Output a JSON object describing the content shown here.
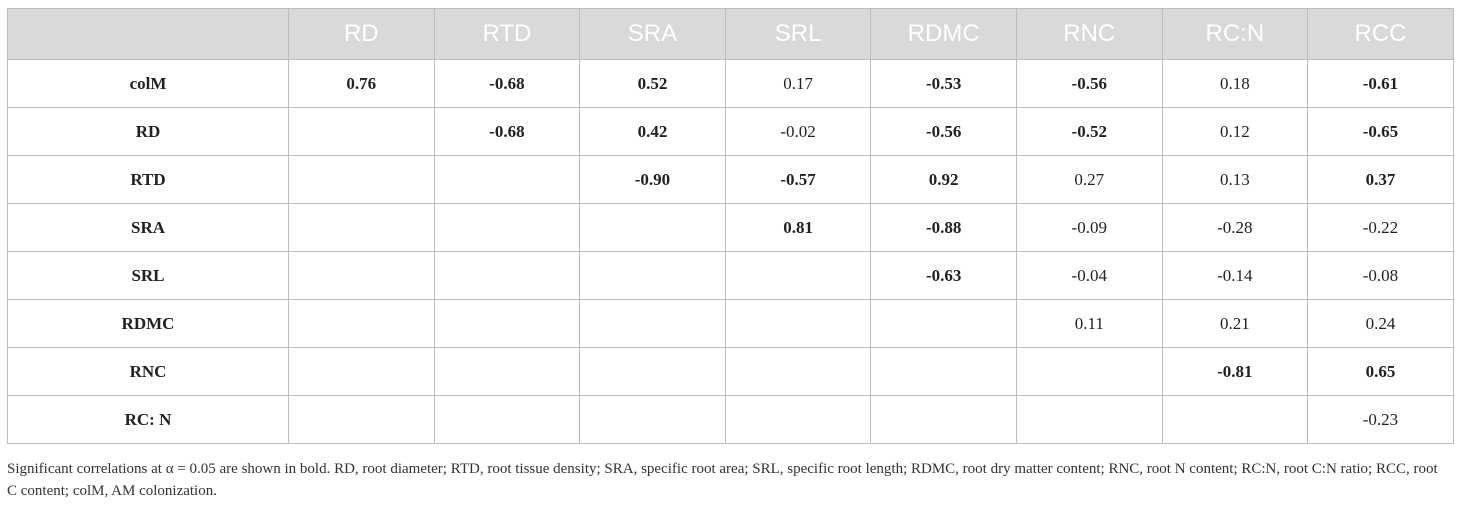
{
  "table": {
    "columns": [
      "RD",
      "RTD",
      "SRA",
      "SRL",
      "RDMC",
      "RNC",
      "RC:N",
      "RCC"
    ],
    "rows": [
      {
        "label": "colM",
        "cells": [
          {
            "v": "0.76",
            "bold": true
          },
          {
            "v": "-0.68",
            "bold": true
          },
          {
            "v": "0.52",
            "bold": true
          },
          {
            "v": "0.17",
            "bold": false
          },
          {
            "v": "-0.53",
            "bold": true
          },
          {
            "v": "-0.56",
            "bold": true
          },
          {
            "v": "0.18",
            "bold": false
          },
          {
            "v": "-0.61",
            "bold": true
          }
        ]
      },
      {
        "label": "RD",
        "cells": [
          {
            "v": "",
            "bold": false
          },
          {
            "v": "-0.68",
            "bold": true
          },
          {
            "v": "0.42",
            "bold": true
          },
          {
            "v": "-0.02",
            "bold": false
          },
          {
            "v": "-0.56",
            "bold": true
          },
          {
            "v": "-0.52",
            "bold": true
          },
          {
            "v": "0.12",
            "bold": false
          },
          {
            "v": "-0.65",
            "bold": true
          }
        ]
      },
      {
        "label": "RTD",
        "cells": [
          {
            "v": "",
            "bold": false
          },
          {
            "v": "",
            "bold": false
          },
          {
            "v": "-0.90",
            "bold": true
          },
          {
            "v": "-0.57",
            "bold": true
          },
          {
            "v": "0.92",
            "bold": true
          },
          {
            "v": "0.27",
            "bold": false
          },
          {
            "v": "0.13",
            "bold": false
          },
          {
            "v": "0.37",
            "bold": true
          }
        ]
      },
      {
        "label": "SRA",
        "cells": [
          {
            "v": "",
            "bold": false
          },
          {
            "v": "",
            "bold": false
          },
          {
            "v": "",
            "bold": false
          },
          {
            "v": "0.81",
            "bold": true
          },
          {
            "v": "-0.88",
            "bold": true
          },
          {
            "v": "-0.09",
            "bold": false
          },
          {
            "v": "-0.28",
            "bold": false
          },
          {
            "v": "-0.22",
            "bold": false
          }
        ]
      },
      {
        "label": "SRL",
        "cells": [
          {
            "v": "",
            "bold": false
          },
          {
            "v": "",
            "bold": false
          },
          {
            "v": "",
            "bold": false
          },
          {
            "v": "",
            "bold": false
          },
          {
            "v": "-0.63",
            "bold": true
          },
          {
            "v": "-0.04",
            "bold": false
          },
          {
            "v": "-0.14",
            "bold": false
          },
          {
            "v": "-0.08",
            "bold": false
          }
        ]
      },
      {
        "label": "RDMC",
        "cells": [
          {
            "v": "",
            "bold": false
          },
          {
            "v": "",
            "bold": false
          },
          {
            "v": "",
            "bold": false
          },
          {
            "v": "",
            "bold": false
          },
          {
            "v": "",
            "bold": false
          },
          {
            "v": "0.11",
            "bold": false
          },
          {
            "v": "0.21",
            "bold": false
          },
          {
            "v": "0.24",
            "bold": false
          }
        ]
      },
      {
        "label": "RNC",
        "cells": [
          {
            "v": "",
            "bold": false
          },
          {
            "v": "",
            "bold": false
          },
          {
            "v": "",
            "bold": false
          },
          {
            "v": "",
            "bold": false
          },
          {
            "v": "",
            "bold": false
          },
          {
            "v": "",
            "bold": false
          },
          {
            "v": "-0.81",
            "bold": true
          },
          {
            "v": "0.65",
            "bold": true
          }
        ]
      },
      {
        "label": "RC: N",
        "cells": [
          {
            "v": "",
            "bold": false
          },
          {
            "v": "",
            "bold": false
          },
          {
            "v": "",
            "bold": false
          },
          {
            "v": "",
            "bold": false
          },
          {
            "v": "",
            "bold": false
          },
          {
            "v": "",
            "bold": false
          },
          {
            "v": "",
            "bold": false
          },
          {
            "v": "-0.23",
            "bold": false
          }
        ]
      }
    ]
  },
  "footnote": "Significant correlations at α = 0.05 are shown in bold. RD, root diameter; RTD, root tissue density; SRA, specific root area; SRL, specific root length; RDMC, root dry matter content; RNC, root N content; RC:N, root C:N ratio; RCC, root C content; colM, AM colonization.",
  "colors": {
    "header_bg": "#d9d9d9",
    "header_text": "#ffffff",
    "border": "#bdbdbd",
    "body_text": "#222222"
  }
}
